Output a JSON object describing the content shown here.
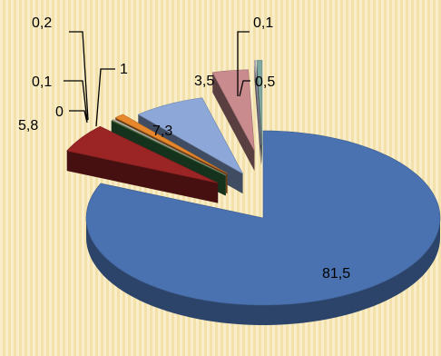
{
  "chart_data": {
    "type": "pie",
    "title": "",
    "labels": [
      "81,5",
      "5,8",
      "0",
      "0,1",
      "0,2",
      "1",
      "7,3",
      "3,5",
      "0,1",
      "0,5"
    ],
    "values": [
      81.5,
      5.8,
      0.0,
      0.1,
      0.2,
      1.0,
      7.3,
      3.5,
      0.1,
      0.5
    ],
    "colors": [
      "#4a72b0",
      "#9b2424",
      "#2e6e40",
      "#7a8a3a",
      "#c0c0c0",
      "#e8872c",
      "#8da8d8",
      "#c98b8e",
      "#b8b3cf",
      "#7fa8a0"
    ],
    "exploded": true,
    "style": "3d",
    "legend": "none"
  }
}
